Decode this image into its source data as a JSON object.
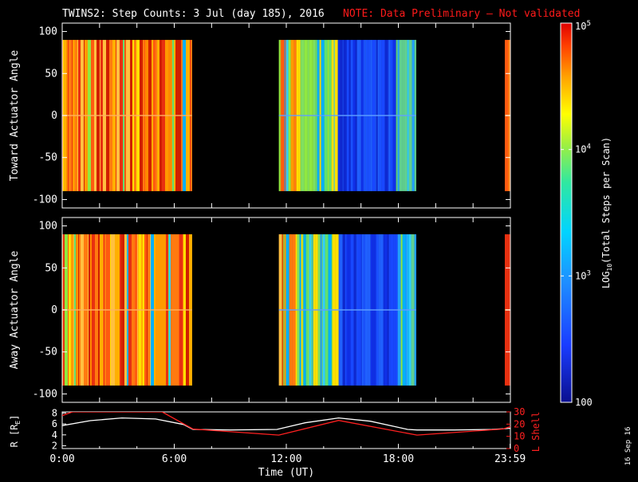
{
  "header": {
    "title": "TWINS2: Step Counts:  3 Jul (day 185), 2016",
    "note": "NOTE: Data Preliminary – Not validated"
  },
  "colors": {
    "background": "#000000",
    "axis": "#ffffff",
    "note": "#ff1a1a",
    "radius_line": "#ffffff",
    "lshell_line": "#ff2020"
  },
  "chart_data": [
    {
      "type": "heatmap",
      "ylabel": "Toward Actuator Angle",
      "ylim": [
        -110,
        110
      ],
      "yticks": [
        "100",
        "50",
        "0",
        "-50",
        "-100"
      ],
      "xlim": [
        0,
        24
      ],
      "data_angle_range": [
        -90,
        90
      ],
      "data_blocks_hours": [
        [
          0,
          6.95
        ],
        [
          11.6,
          18.95
        ],
        [
          23.7,
          24
        ]
      ],
      "colorscale": "log",
      "value_range": [
        100,
        100000
      ]
    },
    {
      "type": "heatmap",
      "ylabel": "Away Actuator Angle",
      "xlabel": "Time (UT)",
      "ylim": [
        -110,
        110
      ],
      "yticks": [
        "100",
        "50",
        "0",
        "-50",
        "-100"
      ],
      "xlim": [
        0,
        24
      ],
      "data_angle_range": [
        -90,
        90
      ],
      "data_blocks_hours": [
        [
          0,
          6.95
        ],
        [
          11.6,
          18.95
        ],
        [
          23.7,
          24
        ]
      ],
      "colorscale": "log",
      "value_range": [
        100,
        100000
      ]
    },
    {
      "type": "line",
      "ylabel_left": "R [R",
      "ylabel_left_sub": "E",
      "ylabel_left_close": "]",
      "ylabel_right": "L Shell",
      "yticks_left": [
        "8",
        "6",
        "4",
        "2"
      ],
      "ylim_left": [
        1.5,
        8.2
      ],
      "yticks_right": [
        "30",
        "20",
        "10",
        "0"
      ],
      "ylim_right": [
        0,
        30
      ],
      "xlim": [
        0,
        24
      ],
      "xticks": [
        "0:00",
        "6:00",
        "12:00",
        "18:00",
        "23:59"
      ],
      "xlabel": "Time (UT)",
      "series": [
        {
          "axis": "left",
          "x": [
            0,
            1.5,
            3.2,
            5,
            6.5,
            7,
            9,
            11.5,
            13,
            14.8,
            16.5,
            18.5,
            19,
            21,
            23,
            24
          ],
          "y": [
            5.7,
            6.6,
            7.1,
            6.9,
            5.9,
            5.0,
            4.9,
            5.0,
            6.2,
            7.1,
            6.5,
            5.0,
            4.9,
            4.9,
            5.0,
            5.2
          ]
        },
        {
          "axis": "right",
          "x": [
            0,
            0.55,
            5.35,
            7,
            11.6,
            14.8,
            19,
            23.6,
            24
          ],
          "y": [
            27,
            30,
            30,
            16,
            11,
            23,
            11,
            16,
            18
          ]
        }
      ]
    }
  ],
  "colorbar": {
    "label_pre": "LOG",
    "label_sub": "10",
    "label_post": "(Total Steps per Scan)",
    "ticks": [
      {
        "value": 100000,
        "base": "10",
        "exp": "5"
      },
      {
        "value": 10000,
        "base": "10",
        "exp": "4"
      },
      {
        "value": 1000,
        "base": "10",
        "exp": "3"
      },
      {
        "value": 100,
        "base": "100",
        "exp": ""
      }
    ]
  },
  "stamp": "16 Sep 16"
}
